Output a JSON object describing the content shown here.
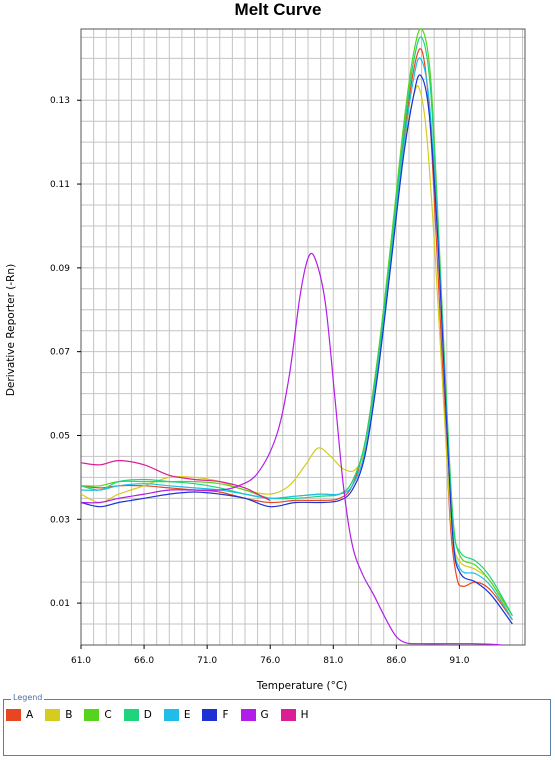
{
  "chart_data": {
    "type": "line",
    "title": "Melt Curve",
    "xlabel": "Temperature (°C)",
    "ylabel": "Derivative Reporter (-Rn)",
    "xlim": [
      61.0,
      96.2
    ],
    "ylim": [
      0.0,
      0.147
    ],
    "xticks": [
      61.0,
      66.0,
      71.0,
      76.0,
      81.0,
      86.0,
      91.0
    ],
    "xtick_labels": [
      "61.0",
      "66.0",
      "71.0",
      "76.0",
      "81.0",
      "86.0",
      "91.0"
    ],
    "yticks": [
      0.01,
      0.03,
      0.05,
      0.07,
      0.09,
      0.11,
      0.13
    ],
    "ytick_labels": [
      "0.01",
      "0.03",
      "0.05",
      "0.07",
      "0.09",
      "0.11",
      "0.13"
    ],
    "grid": true,
    "legend_title": "Legend",
    "legend_position": "bottom",
    "series": [
      {
        "name": "A",
        "color": "#e8461e",
        "points": [
          [
            61,
            0.038
          ],
          [
            62.5,
            0.0375
          ],
          [
            64,
            0.038
          ],
          [
            66,
            0.038
          ],
          [
            68,
            0.0375
          ],
          [
            70,
            0.037
          ],
          [
            72,
            0.0365
          ],
          [
            74,
            0.035
          ],
          [
            76,
            0.034
          ],
          [
            78,
            0.0345
          ],
          [
            80,
            0.0345
          ],
          [
            81.5,
            0.035
          ],
          [
            82.5,
            0.038
          ],
          [
            83.5,
            0.048
          ],
          [
            84.5,
            0.068
          ],
          [
            85.5,
            0.093
          ],
          [
            86.5,
            0.118
          ],
          [
            87.3,
            0.136
          ],
          [
            88,
            0.142
          ],
          [
            88.6,
            0.128
          ],
          [
            89.2,
            0.095
          ],
          [
            89.8,
            0.058
          ],
          [
            90.3,
            0.028
          ],
          [
            90.8,
            0.016
          ],
          [
            91.3,
            0.014
          ],
          [
            92.3,
            0.015
          ],
          [
            93.5,
            0.013
          ],
          [
            95.2,
            0.006
          ]
        ]
      },
      {
        "name": "B",
        "color": "#d4cc1e",
        "points": [
          [
            61,
            0.036
          ],
          [
            62.5,
            0.034
          ],
          [
            64,
            0.036
          ],
          [
            66,
            0.038
          ],
          [
            68,
            0.04
          ],
          [
            70,
            0.04
          ],
          [
            72,
            0.039
          ],
          [
            74,
            0.037
          ],
          [
            76,
            0.036
          ],
          [
            77.5,
            0.038
          ],
          [
            78.8,
            0.043
          ],
          [
            79.8,
            0.047
          ],
          [
            80.8,
            0.045
          ],
          [
            81.8,
            0.042
          ],
          [
            82.8,
            0.042
          ],
          [
            83.6,
            0.048
          ],
          [
            84.5,
            0.066
          ],
          [
            85.5,
            0.092
          ],
          [
            86.5,
            0.117
          ],
          [
            87.3,
            0.13
          ],
          [
            87.8,
            0.133
          ],
          [
            88.4,
            0.122
          ],
          [
            89.1,
            0.092
          ],
          [
            89.8,
            0.055
          ],
          [
            90.4,
            0.027
          ],
          [
            91,
            0.02
          ],
          [
            92.3,
            0.018
          ],
          [
            93.5,
            0.015
          ],
          [
            95.2,
            0.006
          ]
        ]
      },
      {
        "name": "C",
        "color": "#55d41e",
        "points": [
          [
            61,
            0.038
          ],
          [
            62.5,
            0.038
          ],
          [
            64,
            0.039
          ],
          [
            66,
            0.039
          ],
          [
            68,
            0.039
          ],
          [
            70,
            0.039
          ],
          [
            72,
            0.0385
          ],
          [
            74,
            0.037
          ],
          [
            76,
            0.035
          ],
          [
            78,
            0.0355
          ],
          [
            80,
            0.036
          ],
          [
            81.5,
            0.036
          ],
          [
            82.5,
            0.039
          ],
          [
            83.5,
            0.048
          ],
          [
            84.5,
            0.068
          ],
          [
            85.5,
            0.094
          ],
          [
            86.5,
            0.122
          ],
          [
            87.3,
            0.14
          ],
          [
            88,
            0.147
          ],
          [
            88.7,
            0.136
          ],
          [
            89.3,
            0.102
          ],
          [
            89.9,
            0.063
          ],
          [
            90.5,
            0.03
          ],
          [
            91.1,
            0.021
          ],
          [
            92.3,
            0.019
          ],
          [
            93.5,
            0.015
          ],
          [
            95.2,
            0.007
          ]
        ]
      },
      {
        "name": "D",
        "color": "#1ed47c",
        "points": [
          [
            61,
            0.038
          ],
          [
            62.5,
            0.037
          ],
          [
            64,
            0.039
          ],
          [
            66,
            0.0395
          ],
          [
            68,
            0.039
          ],
          [
            70,
            0.0385
          ],
          [
            72,
            0.0375
          ],
          [
            74,
            0.036
          ],
          [
            76,
            0.035
          ],
          [
            78,
            0.035
          ],
          [
            80,
            0.0355
          ],
          [
            81.5,
            0.036
          ],
          [
            82.5,
            0.039
          ],
          [
            83.5,
            0.048
          ],
          [
            84.5,
            0.067
          ],
          [
            85.5,
            0.092
          ],
          [
            86.5,
            0.12
          ],
          [
            87.3,
            0.138
          ],
          [
            88,
            0.145
          ],
          [
            88.7,
            0.133
          ],
          [
            89.3,
            0.1
          ],
          [
            89.9,
            0.062
          ],
          [
            90.5,
            0.029
          ],
          [
            91.1,
            0.022
          ],
          [
            92.3,
            0.02
          ],
          [
            93.5,
            0.016
          ],
          [
            95.2,
            0.007
          ]
        ]
      },
      {
        "name": "E",
        "color": "#1ebee8",
        "points": [
          [
            61,
            0.037
          ],
          [
            62.5,
            0.037
          ],
          [
            64,
            0.038
          ],
          [
            66,
            0.0385
          ],
          [
            68,
            0.038
          ],
          [
            70,
            0.0375
          ],
          [
            72,
            0.037
          ],
          [
            74,
            0.036
          ],
          [
            76,
            0.035
          ],
          [
            78,
            0.0355
          ],
          [
            80,
            0.036
          ],
          [
            81.5,
            0.036
          ],
          [
            82.5,
            0.038
          ],
          [
            83.5,
            0.046
          ],
          [
            84.5,
            0.065
          ],
          [
            85.5,
            0.09
          ],
          [
            86.5,
            0.117
          ],
          [
            87.3,
            0.134
          ],
          [
            87.9,
            0.14
          ],
          [
            88.6,
            0.13
          ],
          [
            89.3,
            0.098
          ],
          [
            89.9,
            0.06
          ],
          [
            90.5,
            0.026
          ],
          [
            91.1,
            0.018
          ],
          [
            92.3,
            0.017
          ],
          [
            93.5,
            0.014
          ],
          [
            95.2,
            0.006
          ]
        ]
      },
      {
        "name": "F",
        "color": "#1e32d4",
        "points": [
          [
            61,
            0.034
          ],
          [
            62.5,
            0.033
          ],
          [
            64,
            0.034
          ],
          [
            66,
            0.035
          ],
          [
            68,
            0.036
          ],
          [
            70,
            0.0365
          ],
          [
            72,
            0.036
          ],
          [
            74,
            0.035
          ],
          [
            76,
            0.033
          ],
          [
            78,
            0.034
          ],
          [
            80,
            0.034
          ],
          [
            81.5,
            0.0345
          ],
          [
            82.5,
            0.037
          ],
          [
            83.5,
            0.045
          ],
          [
            84.5,
            0.064
          ],
          [
            85.5,
            0.089
          ],
          [
            86.5,
            0.115
          ],
          [
            87.3,
            0.13
          ],
          [
            87.9,
            0.136
          ],
          [
            88.6,
            0.127
          ],
          [
            89.3,
            0.096
          ],
          [
            89.9,
            0.058
          ],
          [
            90.5,
            0.025
          ],
          [
            91.1,
            0.017
          ],
          [
            92.3,
            0.015
          ],
          [
            93.5,
            0.012
          ],
          [
            95.2,
            0.005
          ]
        ]
      },
      {
        "name": "G",
        "color": "#b21ee8",
        "points": [
          [
            61,
            0.034
          ],
          [
            62.5,
            0.034
          ],
          [
            64,
            0.035
          ],
          [
            66,
            0.036
          ],
          [
            68,
            0.037
          ],
          [
            70,
            0.037
          ],
          [
            72,
            0.037
          ],
          [
            73.5,
            0.038
          ],
          [
            75,
            0.041
          ],
          [
            76.5,
            0.05
          ],
          [
            77.5,
            0.064
          ],
          [
            78.4,
            0.084
          ],
          [
            79.1,
            0.093
          ],
          [
            79.7,
            0.091
          ],
          [
            80.4,
            0.081
          ],
          [
            81.1,
            0.06
          ],
          [
            81.8,
            0.038
          ],
          [
            82.5,
            0.024
          ],
          [
            83.3,
            0.017
          ],
          [
            84.2,
            0.012
          ],
          [
            85.2,
            0.006
          ],
          [
            86,
            0.002
          ],
          [
            86.8,
            0.0005
          ],
          [
            88,
            0.0003
          ],
          [
            90,
            0.0003
          ],
          [
            92,
            0.0003
          ],
          [
            93.5,
            0.0002
          ],
          [
            94.4,
            0.0
          ]
        ]
      },
      {
        "name": "H",
        "color": "#dc1e96",
        "points": [
          [
            61,
            0.0435
          ],
          [
            62.5,
            0.043
          ],
          [
            64,
            0.044
          ],
          [
            66,
            0.043
          ],
          [
            68,
            0.0405
          ],
          [
            70,
            0.0395
          ],
          [
            72,
            0.039
          ],
          [
            74,
            0.0375
          ],
          [
            75,
            0.036
          ],
          [
            76,
            0.0345
          ]
        ]
      }
    ]
  }
}
